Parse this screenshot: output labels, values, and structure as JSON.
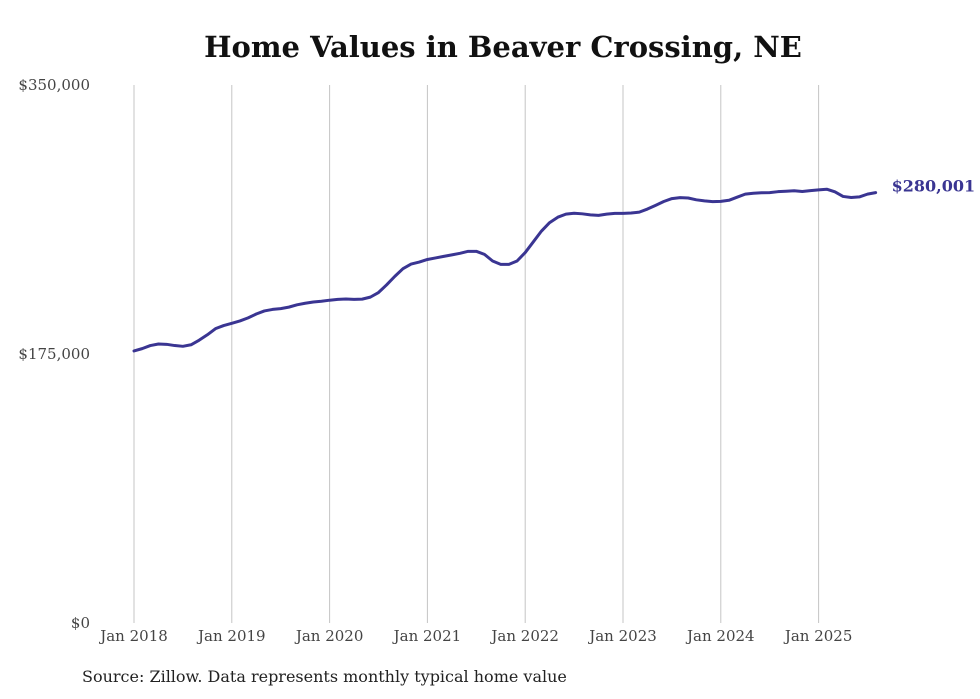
{
  "chart_data": {
    "type": "line",
    "title": "Home Values in Beaver Crossing, NE",
    "source": "Source: Zillow. Data represents monthly typical home value",
    "ylim": [
      0,
      350000
    ],
    "yticks": [
      "$0",
      "$175,000",
      "$350,000"
    ],
    "xticks": [
      "Jan 2018",
      "Jan 2019",
      "Jan 2020",
      "Jan 2021",
      "Jan 2022",
      "Jan 2023",
      "Jan 2024",
      "Jan 2025"
    ],
    "grid": "vertical",
    "line_color": "#3a3592",
    "end_label": "$280,001",
    "series": [
      {
        "x": [
          "2018-01",
          "2018-02",
          "2018-03",
          "2018-04",
          "2018-05",
          "2018-06",
          "2018-07",
          "2018-08",
          "2018-09",
          "2018-10",
          "2018-11",
          "2018-12",
          "2019-01",
          "2019-02",
          "2019-03",
          "2019-04",
          "2019-05",
          "2019-06",
          "2019-07",
          "2019-08",
          "2019-09",
          "2019-10",
          "2019-11",
          "2019-12",
          "2020-01",
          "2020-02",
          "2020-03",
          "2020-04",
          "2020-05",
          "2020-06",
          "2020-07",
          "2020-08",
          "2020-09",
          "2020-10",
          "2020-11",
          "2020-12",
          "2021-01",
          "2021-02",
          "2021-03",
          "2021-04",
          "2021-05",
          "2021-06",
          "2021-07",
          "2021-08",
          "2021-09",
          "2021-10",
          "2021-11",
          "2021-12",
          "2022-01",
          "2022-02",
          "2022-03",
          "2022-04",
          "2022-05",
          "2022-06",
          "2022-07",
          "2022-08",
          "2022-09",
          "2022-10",
          "2022-11",
          "2022-12",
          "2023-01",
          "2023-02",
          "2023-03",
          "2023-04",
          "2023-05",
          "2023-06",
          "2023-07",
          "2023-08",
          "2023-09",
          "2023-10",
          "2023-11",
          "2023-12",
          "2024-01",
          "2024-02",
          "2024-03",
          "2024-04",
          "2024-05",
          "2024-06",
          "2024-07",
          "2024-08",
          "2024-09",
          "2024-10",
          "2024-11",
          "2024-12",
          "2025-01",
          "2025-02",
          "2025-03",
          "2025-04",
          "2025-05",
          "2025-06",
          "2025-07",
          "2025-08"
        ],
        "values": [
          177000,
          178500,
          180500,
          181500,
          181300,
          180500,
          180000,
          181000,
          184000,
          187500,
          191500,
          193500,
          195000,
          196500,
          198500,
          201000,
          203000,
          204000,
          204500,
          205500,
          207000,
          208000,
          208800,
          209300,
          210000,
          210500,
          210800,
          210500,
          210700,
          212000,
          215000,
          220000,
          225500,
          230500,
          233500,
          234800,
          236500,
          237500,
          238500,
          239500,
          240500,
          241800,
          241800,
          239800,
          235500,
          233300,
          233300,
          235500,
          241000,
          248000,
          255000,
          260500,
          264000,
          266000,
          266600,
          266200,
          265500,
          265200,
          266000,
          266500,
          266500,
          266700,
          267300,
          269300,
          271700,
          274200,
          276100,
          276700,
          276500,
          275300,
          274600,
          274100,
          274300,
          275000,
          277000,
          279000,
          279600,
          279900,
          280000,
          280600,
          280900,
          281200,
          280700,
          281300,
          281800,
          282200,
          280500,
          277500,
          276800,
          277200,
          279000,
          280001
        ]
      }
    ]
  }
}
